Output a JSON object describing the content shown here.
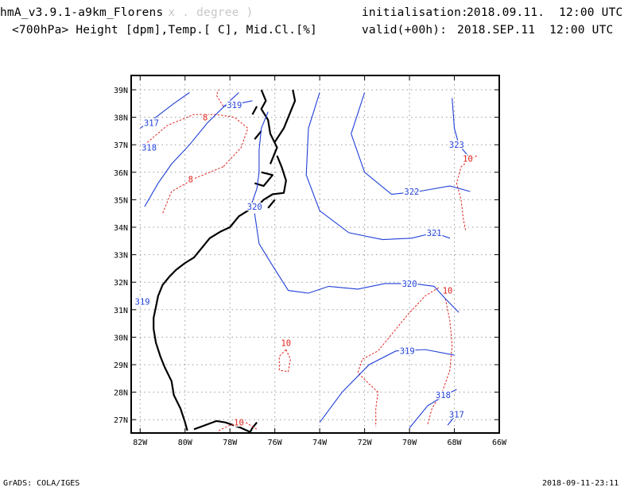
{
  "header": {
    "model_title": "hmA_v3.9.1-a9km_Florens",
    "model_title_faint": "x . degree )",
    "variables": "<700hPa> Height [dpm],Temp.[ C], Mid.Cl.[%]",
    "init_label": "initialisation:",
    "init_value": "2018.09.11.  12:00 UTC",
    "valid_label": "valid(+00h):",
    "valid_value": "2018.SEP.11  12:00 UTC"
  },
  "footer": {
    "credit": "GrADS: COLA/IGES",
    "timestamp": "2018-09-11-23:11"
  },
  "map": {
    "lat_labels": [
      "39N",
      "38N",
      "37N",
      "36N",
      "35N",
      "34N",
      "33N",
      "32N",
      "31N",
      "30N",
      "29N",
      "28N",
      "27N"
    ],
    "lat_values": [
      39,
      38,
      37,
      36,
      35,
      34,
      33,
      32,
      31,
      30,
      29,
      28,
      27
    ],
    "lon_labels": [
      "82W",
      "80W",
      "78W",
      "76W",
      "74W",
      "72W",
      "70W",
      "68W",
      "66W"
    ],
    "lon_values": [
      -82,
      -80,
      -78,
      -76,
      -74,
      -72,
      -70,
      -68,
      -66
    ],
    "colors": {
      "height": "#1f3fd8",
      "temp": "#e0201a",
      "coast": "#000000",
      "grid": "#9a9a9a"
    },
    "height_contours": [
      {
        "label": "317",
        "label_lon": -81.5,
        "label_lat": 37.8,
        "points": [
          [
            -82,
            37.6
          ],
          [
            -81.3,
            38.0
          ],
          [
            -80.5,
            38.5
          ],
          [
            -79.8,
            38.9
          ]
        ]
      },
      {
        "label": "318",
        "label_lon": -81.6,
        "label_lat": 36.9,
        "points": [
          [
            -81.8,
            34.75
          ],
          [
            -81.2,
            35.6
          ],
          [
            -80.6,
            36.3
          ],
          [
            -79.8,
            37.0
          ],
          [
            -79.0,
            37.8
          ],
          [
            -78.0,
            38.6
          ],
          [
            -77.6,
            38.9
          ]
        ]
      },
      {
        "label": "319",
        "label_lon": -77.8,
        "label_lat": 38.45,
        "points": [
          [
            -78.3,
            38.4
          ],
          [
            -77.6,
            38.5
          ],
          [
            -77.0,
            38.6
          ]
        ]
      },
      {
        "label": "320",
        "label_lon": -76.9,
        "label_lat": 34.75,
        "points": [
          [
            -77.1,
            34.7
          ],
          [
            -76.8,
            35.4
          ],
          [
            -76.7,
            36.0
          ],
          [
            -76.7,
            36.8
          ],
          [
            -76.6,
            37.6
          ],
          [
            -76.3,
            38.2
          ]
        ]
      },
      {
        "label": "320",
        "label_lon": -70.0,
        "label_lat": 31.95,
        "points": [
          [
            -76.9,
            34.5
          ],
          [
            -76.7,
            33.4
          ],
          [
            -76.1,
            32.6
          ],
          [
            -75.4,
            31.7
          ],
          [
            -74.5,
            31.6
          ],
          [
            -73.6,
            31.85
          ],
          [
            -72.3,
            31.75
          ],
          [
            -71.1,
            31.95
          ],
          [
            -69.8,
            31.95
          ],
          [
            -68.9,
            31.85
          ],
          [
            -68.4,
            31.4
          ],
          [
            -67.8,
            30.9
          ]
        ]
      },
      {
        "label": "321",
        "label_lon": -68.9,
        "label_lat": 33.8,
        "points": [
          [
            -74.0,
            38.9
          ],
          [
            -74.5,
            37.6
          ],
          [
            -74.6,
            35.9
          ],
          [
            -74.0,
            34.6
          ],
          [
            -72.7,
            33.8
          ],
          [
            -71.2,
            33.55
          ],
          [
            -69.9,
            33.6
          ],
          [
            -68.9,
            33.8
          ],
          [
            -68.2,
            33.6
          ]
        ]
      },
      {
        "label": "322",
        "label_lon": -69.9,
        "label_lat": 35.3,
        "points": [
          [
            -72.0,
            38.9
          ],
          [
            -72.6,
            37.4
          ],
          [
            -72.0,
            36.0
          ],
          [
            -70.8,
            35.2
          ],
          [
            -69.6,
            35.3
          ],
          [
            -68.2,
            35.5
          ],
          [
            -67.3,
            35.3
          ]
        ]
      },
      {
        "label": "323",
        "label_lon": -67.9,
        "label_lat": 37.0,
        "points": [
          [
            -68.1,
            38.7
          ],
          [
            -68.0,
            37.6
          ],
          [
            -67.8,
            37.0
          ],
          [
            -67.4,
            36.6
          ]
        ]
      },
      {
        "label": "319",
        "label_lon": -81.9,
        "label_lat": 31.3,
        "points": [
          [
            -82,
            31.2
          ],
          [
            -81.9,
            31.35
          ]
        ]
      },
      {
        "label": "319",
        "label_lon": -70.1,
        "label_lat": 29.5,
        "points": [
          [
            -74.0,
            26.9
          ],
          [
            -73.0,
            28.0
          ],
          [
            -71.8,
            29.0
          ],
          [
            -70.6,
            29.5
          ],
          [
            -69.3,
            29.55
          ],
          [
            -68.0,
            29.35
          ]
        ]
      },
      {
        "label": "318",
        "label_lon": -68.5,
        "label_lat": 27.9,
        "points": [
          [
            -70.0,
            26.7
          ],
          [
            -69.2,
            27.5
          ],
          [
            -68.4,
            27.9
          ],
          [
            -67.9,
            28.1
          ]
        ]
      },
      {
        "label": "317",
        "label_lon": -67.9,
        "label_lat": 27.2,
        "points": [
          [
            -68.3,
            26.8
          ],
          [
            -67.8,
            27.3
          ]
        ]
      }
    ],
    "temp_contours": [
      {
        "label": "8",
        "label_lon": -79.1,
        "label_lat": 38.0,
        "points": [
          [
            -81.8,
            37.0
          ],
          [
            -80.8,
            37.7
          ],
          [
            -79.6,
            38.1
          ],
          [
            -78.6,
            38.1
          ],
          [
            -77.8,
            38.0
          ],
          [
            -77.2,
            37.6
          ],
          [
            -77.5,
            36.9
          ],
          [
            -78.3,
            36.2
          ]
        ]
      },
      {
        "label": "8",
        "label_lon": -79.75,
        "label_lat": 35.75,
        "points": [
          [
            -78.3,
            36.2
          ],
          [
            -79.5,
            35.8
          ],
          [
            -80.6,
            35.3
          ],
          [
            -81.0,
            34.5
          ]
        ]
      },
      {
        "label": "",
        "label_lon": 0,
        "label_lat": 0,
        "points": [
          [
            -78.3,
            38.4
          ],
          [
            -78.6,
            38.8
          ],
          [
            -78.5,
            39.0
          ]
        ]
      },
      {
        "label": "10",
        "label_lon": -67.4,
        "label_lat": 36.5,
        "points": [
          [
            -67.0,
            36.6
          ],
          [
            -67.4,
            36.4
          ],
          [
            -67.7,
            36.2
          ],
          [
            -67.9,
            35.6
          ],
          [
            -67.7,
            35.0
          ],
          [
            -67.6,
            34.3
          ],
          [
            -67.5,
            33.9
          ]
        ]
      },
      {
        "label": "10",
        "label_lon": -75.5,
        "label_lat": 29.8,
        "points": [
          [
            -75.5,
            29.55
          ],
          [
            -75.8,
            29.3
          ],
          [
            -75.8,
            28.8
          ],
          [
            -75.4,
            28.75
          ],
          [
            -75.3,
            29.2
          ],
          [
            -75.5,
            29.55
          ]
        ]
      },
      {
        "label": "10",
        "label_lon": -68.3,
        "label_lat": 31.7,
        "points": [
          [
            -68.7,
            31.8
          ],
          [
            -69.3,
            31.5
          ],
          [
            -70.1,
            30.8
          ],
          [
            -70.9,
            30.0
          ],
          [
            -71.4,
            29.5
          ],
          [
            -72.1,
            29.2
          ],
          [
            -72.3,
            28.7
          ],
          [
            -71.8,
            28.3
          ],
          [
            -71.4,
            28.0
          ],
          [
            -71.5,
            27.4
          ],
          [
            -71.5,
            26.75
          ]
        ]
      },
      {
        "label": "",
        "label_lon": 0,
        "label_lat": 0,
        "points": [
          [
            -68.4,
            31.4
          ],
          [
            -68.2,
            30.6
          ],
          [
            -68.1,
            29.7
          ],
          [
            -68.2,
            28.8
          ],
          [
            -68.5,
            28.1
          ],
          [
            -69.0,
            27.4
          ],
          [
            -69.2,
            26.8
          ]
        ]
      },
      {
        "label": "10",
        "label_lon": -77.6,
        "label_lat": 26.9,
        "points": [
          [
            -78.5,
            26.6
          ],
          [
            -78.0,
            26.8
          ],
          [
            -77.3,
            26.9
          ],
          [
            -76.8,
            26.65
          ]
        ]
      }
    ],
    "coast_lines": [
      [
        [
          -77.2,
          34.6
        ],
        [
          -77.6,
          34.4
        ],
        [
          -78.0,
          34.0
        ],
        [
          -78.4,
          33.85
        ],
        [
          -78.9,
          33.6
        ],
        [
          -79.3,
          33.2
        ],
        [
          -79.6,
          32.9
        ],
        [
          -80.0,
          32.7
        ],
        [
          -80.4,
          32.45
        ],
        [
          -80.7,
          32.2
        ],
        [
          -81.0,
          31.9
        ],
        [
          -81.2,
          31.5
        ],
        [
          -81.3,
          31.1
        ],
        [
          -81.4,
          30.7
        ],
        [
          -81.4,
          30.3
        ],
        [
          -81.3,
          29.8
        ],
        [
          -81.1,
          29.3
        ],
        [
          -80.9,
          28.9
        ],
        [
          -80.6,
          28.4
        ],
        [
          -80.5,
          27.9
        ],
        [
          -80.2,
          27.4
        ],
        [
          -80.0,
          26.9
        ],
        [
          -79.9,
          26.6
        ]
      ],
      [
        [
          -77.2,
          34.6
        ],
        [
          -76.8,
          34.75
        ],
        [
          -76.5,
          35.0
        ],
        [
          -76.1,
          35.2
        ],
        [
          -75.6,
          35.25
        ],
        [
          -75.5,
          35.7
        ],
        [
          -75.7,
          36.2
        ],
        [
          -75.9,
          36.6
        ]
      ],
      [
        [
          -76.3,
          34.7
        ],
        [
          -76.0,
          35.0
        ]
      ],
      [
        [
          -76.9,
          35.6
        ],
        [
          -76.5,
          35.5
        ],
        [
          -76.1,
          35.9
        ],
        [
          -76.6,
          36.0
        ]
      ],
      [
        [
          -76.2,
          36.3
        ],
        [
          -75.9,
          36.9
        ],
        [
          -76.2,
          37.4
        ],
        [
          -76.3,
          37.9
        ],
        [
          -76.6,
          38.3
        ],
        [
          -76.4,
          38.6
        ],
        [
          -76.6,
          39.0
        ]
      ],
      [
        [
          -76.0,
          37.1
        ],
        [
          -75.6,
          37.6
        ],
        [
          -75.3,
          38.2
        ],
        [
          -75.1,
          38.6
        ],
        [
          -75.2,
          39.0
        ]
      ],
      [
        [
          -76.9,
          37.2
        ],
        [
          -76.6,
          37.5
        ]
      ],
      [
        [
          -77.0,
          38.1
        ],
        [
          -76.8,
          38.4
        ]
      ],
      [
        [
          -79.6,
          26.65
        ],
        [
          -79.1,
          26.8
        ],
        [
          -78.6,
          26.95
        ],
        [
          -78.2,
          26.9
        ],
        [
          -77.5,
          26.7
        ],
        [
          -77.1,
          26.55
        ]
      ],
      [
        [
          -77.1,
          26.55
        ],
        [
          -77.0,
          26.7
        ],
        [
          -76.8,
          26.9
        ]
      ]
    ]
  }
}
